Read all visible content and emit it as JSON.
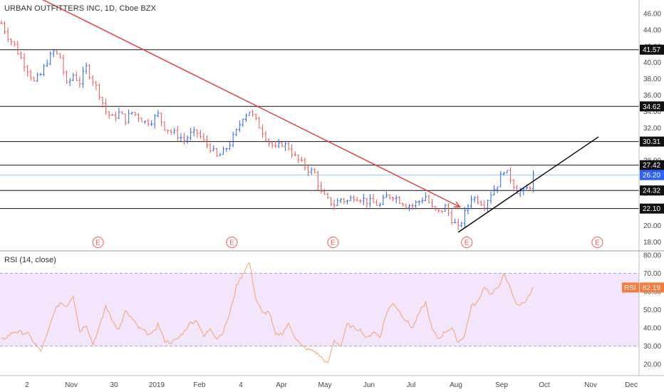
{
  "header": {
    "title": "URBAN OUTFITTERS INC, 1D, Cboe BZX"
  },
  "rsi_header": {
    "title": "RSI (14, close)",
    "tag_label": "RSI",
    "tag_value": "62.19"
  },
  "colors": {
    "up": "#2962ff",
    "down": "#ef5350",
    "trend_down": "#e53935",
    "trend_up": "#000000",
    "rsi_line": "#f5a56c",
    "rsi_band": "#f3e5fb",
    "last_price_line": "#90caf9",
    "last_price_tag": "#2962ff",
    "earnings": "#f0584f"
  },
  "chart_data": [
    {
      "type": "candlestick",
      "title": "URBAN OUTFITTERS INC, 1D, Cboe BZX",
      "ylim": [
        17.4,
        47.6
      ],
      "y_ticks": [
        "46.00",
        "44.00",
        "42.00",
        "40.00",
        "38.00",
        "36.00",
        "34.00",
        "32.00",
        "30.00",
        "28.00",
        "26.00",
        "24.00",
        "22.00",
        "20.00",
        "18.00"
      ],
      "x_ticks": [
        "2",
        "Nov",
        "30",
        "2019",
        "Feb",
        "4",
        "Apr",
        "May",
        "Jun",
        "Jul",
        "Aug",
        "Sep",
        "Oct",
        "Nov",
        "Dec"
      ],
      "horizontal_levels": [
        {
          "label": "41.57",
          "value": 41.57
        },
        {
          "label": "34.62",
          "value": 34.62
        },
        {
          "label": "30.31",
          "value": 30.31
        },
        {
          "label": "27.42",
          "value": 27.42
        },
        {
          "label": "24.32",
          "value": 24.32
        },
        {
          "label": "22.10",
          "value": 22.1
        }
      ],
      "last_price": {
        "label": "26.20",
        "value": 26.2
      },
      "earnings_marker": "E",
      "earnings_count": 5,
      "price_path": [
        [
          0,
          44.8
        ],
        [
          2,
          43.2
        ],
        [
          4,
          42.1
        ],
        [
          6,
          40.5
        ],
        [
          8,
          39.2
        ],
        [
          10,
          37.6
        ],
        [
          12,
          38.5
        ],
        [
          14,
          40.2
        ],
        [
          16,
          41.3
        ],
        [
          18,
          40.6
        ],
        [
          20,
          37.2
        ],
        [
          22,
          38.5
        ],
        [
          24,
          37.6
        ],
        [
          26,
          39.4
        ],
        [
          28,
          37.8
        ],
        [
          30,
          36.2
        ],
        [
          32,
          34.0
        ],
        [
          34,
          33.2
        ],
        [
          36,
          33.8
        ],
        [
          38,
          33.0
        ],
        [
          40,
          33.9
        ],
        [
          42,
          33.4
        ],
        [
          44,
          32.7
        ],
        [
          46,
          32.9
        ],
        [
          48,
          33.6
        ],
        [
          50,
          32.1
        ],
        [
          52,
          31.5
        ],
        [
          54,
          31.1
        ],
        [
          56,
          30.5
        ],
        [
          58,
          31.2
        ],
        [
          60,
          31.4
        ],
        [
          62,
          30.3
        ],
        [
          64,
          29.6
        ],
        [
          66,
          28.4
        ],
        [
          68,
          29.0
        ],
        [
          70,
          30.1
        ],
        [
          72,
          31.5
        ],
        [
          74,
          33.4
        ],
        [
          76,
          34.1
        ],
        [
          78,
          32.8
        ],
        [
          80,
          31.6
        ],
        [
          82,
          30.3
        ],
        [
          84,
          29.4
        ],
        [
          86,
          30.1
        ],
        [
          88,
          29.6
        ],
        [
          90,
          28.4
        ],
        [
          92,
          27.6
        ],
        [
          94,
          26.9
        ],
        [
          96,
          26.4
        ],
        [
          98,
          24.0
        ],
        [
          100,
          23.1
        ],
        [
          102,
          22.6
        ],
        [
          104,
          23.3
        ],
        [
          106,
          23.0
        ],
        [
          108,
          23.6
        ],
        [
          110,
          23.4
        ],
        [
          112,
          23.0
        ],
        [
          114,
          22.8
        ],
        [
          116,
          22.5
        ],
        [
          118,
          23.6
        ],
        [
          120,
          23.7
        ],
        [
          122,
          23.1
        ],
        [
          124,
          22.6
        ],
        [
          126,
          22.5
        ],
        [
          128,
          23.0
        ],
        [
          130,
          23.6
        ],
        [
          132,
          22.1
        ],
        [
          134,
          21.6
        ],
        [
          136,
          22.3
        ],
        [
          138,
          20.8
        ],
        [
          140,
          19.6
        ],
        [
          142,
          21.5
        ],
        [
          144,
          23.5
        ],
        [
          146,
          23.2
        ],
        [
          148,
          22.6
        ],
        [
          150,
          24.0
        ],
        [
          152,
          25.1
        ],
        [
          154,
          26.9
        ],
        [
          156,
          25.8
        ],
        [
          158,
          24.3
        ],
        [
          160,
          24.1
        ],
        [
          162,
          24.9
        ],
        [
          163,
          26.2
        ]
      ],
      "trendlines": [
        {
          "name": "downtrend",
          "from": {
            "day": -10,
            "value": 52.2
          },
          "to": {
            "day": 140.5,
            "value": 22.3
          }
        },
        {
          "name": "uptrend",
          "from": {
            "day": 140,
            "value": 19.2
          },
          "to": {
            "day": 183,
            "value": 30.9
          }
        }
      ],
      "earnings_days": [
        27,
        68,
        99,
        140,
        180
      ]
    },
    {
      "type": "line",
      "title": "RSI (14, close)",
      "ylim": [
        14.5,
        82.4
      ],
      "y_ticks": [
        "80.00",
        "70.00",
        "60.00",
        "50.00",
        "40.00",
        "30.00",
        "20.00"
      ],
      "band": [
        30,
        70
      ],
      "rsi_path": [
        [
          0,
          33
        ],
        [
          4,
          38
        ],
        [
          8,
          37
        ],
        [
          12,
          27
        ],
        [
          14,
          36
        ],
        [
          16,
          48
        ],
        [
          18,
          54
        ],
        [
          20,
          52
        ],
        [
          22,
          58
        ],
        [
          24,
          38
        ],
        [
          26,
          42
        ],
        [
          28,
          31
        ],
        [
          30,
          40
        ],
        [
          32,
          52
        ],
        [
          34,
          44
        ],
        [
          36,
          39
        ],
        [
          38,
          49
        ],
        [
          40,
          45
        ],
        [
          42,
          40
        ],
        [
          44,
          38
        ],
        [
          46,
          36
        ],
        [
          48,
          42
        ],
        [
          50,
          33
        ],
        [
          52,
          32
        ],
        [
          54,
          34
        ],
        [
          56,
          38
        ],
        [
          58,
          43
        ],
        [
          60,
          44
        ],
        [
          62,
          35
        ],
        [
          64,
          40
        ],
        [
          66,
          34
        ],
        [
          68,
          38
        ],
        [
          70,
          48
        ],
        [
          72,
          63
        ],
        [
          74,
          70
        ],
        [
          76,
          76
        ],
        [
          78,
          56
        ],
        [
          80,
          48
        ],
        [
          82,
          49
        ],
        [
          84,
          36
        ],
        [
          86,
          37
        ],
        [
          88,
          42
        ],
        [
          90,
          35
        ],
        [
          92,
          30
        ],
        [
          94,
          28
        ],
        [
          96,
          27
        ],
        [
          98,
          24
        ],
        [
          100,
          20
        ],
        [
          102,
          33
        ],
        [
          104,
          30
        ],
        [
          106,
          42
        ],
        [
          108,
          40
        ],
        [
          110,
          39
        ],
        [
          112,
          34
        ],
        [
          114,
          38
        ],
        [
          116,
          35
        ],
        [
          118,
          48
        ],
        [
          120,
          54
        ],
        [
          122,
          49
        ],
        [
          124,
          44
        ],
        [
          126,
          40
        ],
        [
          128,
          48
        ],
        [
          130,
          54
        ],
        [
          132,
          39
        ],
        [
          134,
          34
        ],
        [
          136,
          38
        ],
        [
          138,
          40
        ],
        [
          140,
          32
        ],
        [
          142,
          36
        ],
        [
          144,
          52
        ],
        [
          146,
          54
        ],
        [
          148,
          63
        ],
        [
          150,
          58
        ],
        [
          152,
          62
        ],
        [
          154,
          69
        ],
        [
          156,
          62
        ],
        [
          158,
          52
        ],
        [
          160,
          54
        ],
        [
          162,
          58
        ],
        [
          163,
          62.19
        ]
      ]
    }
  ]
}
